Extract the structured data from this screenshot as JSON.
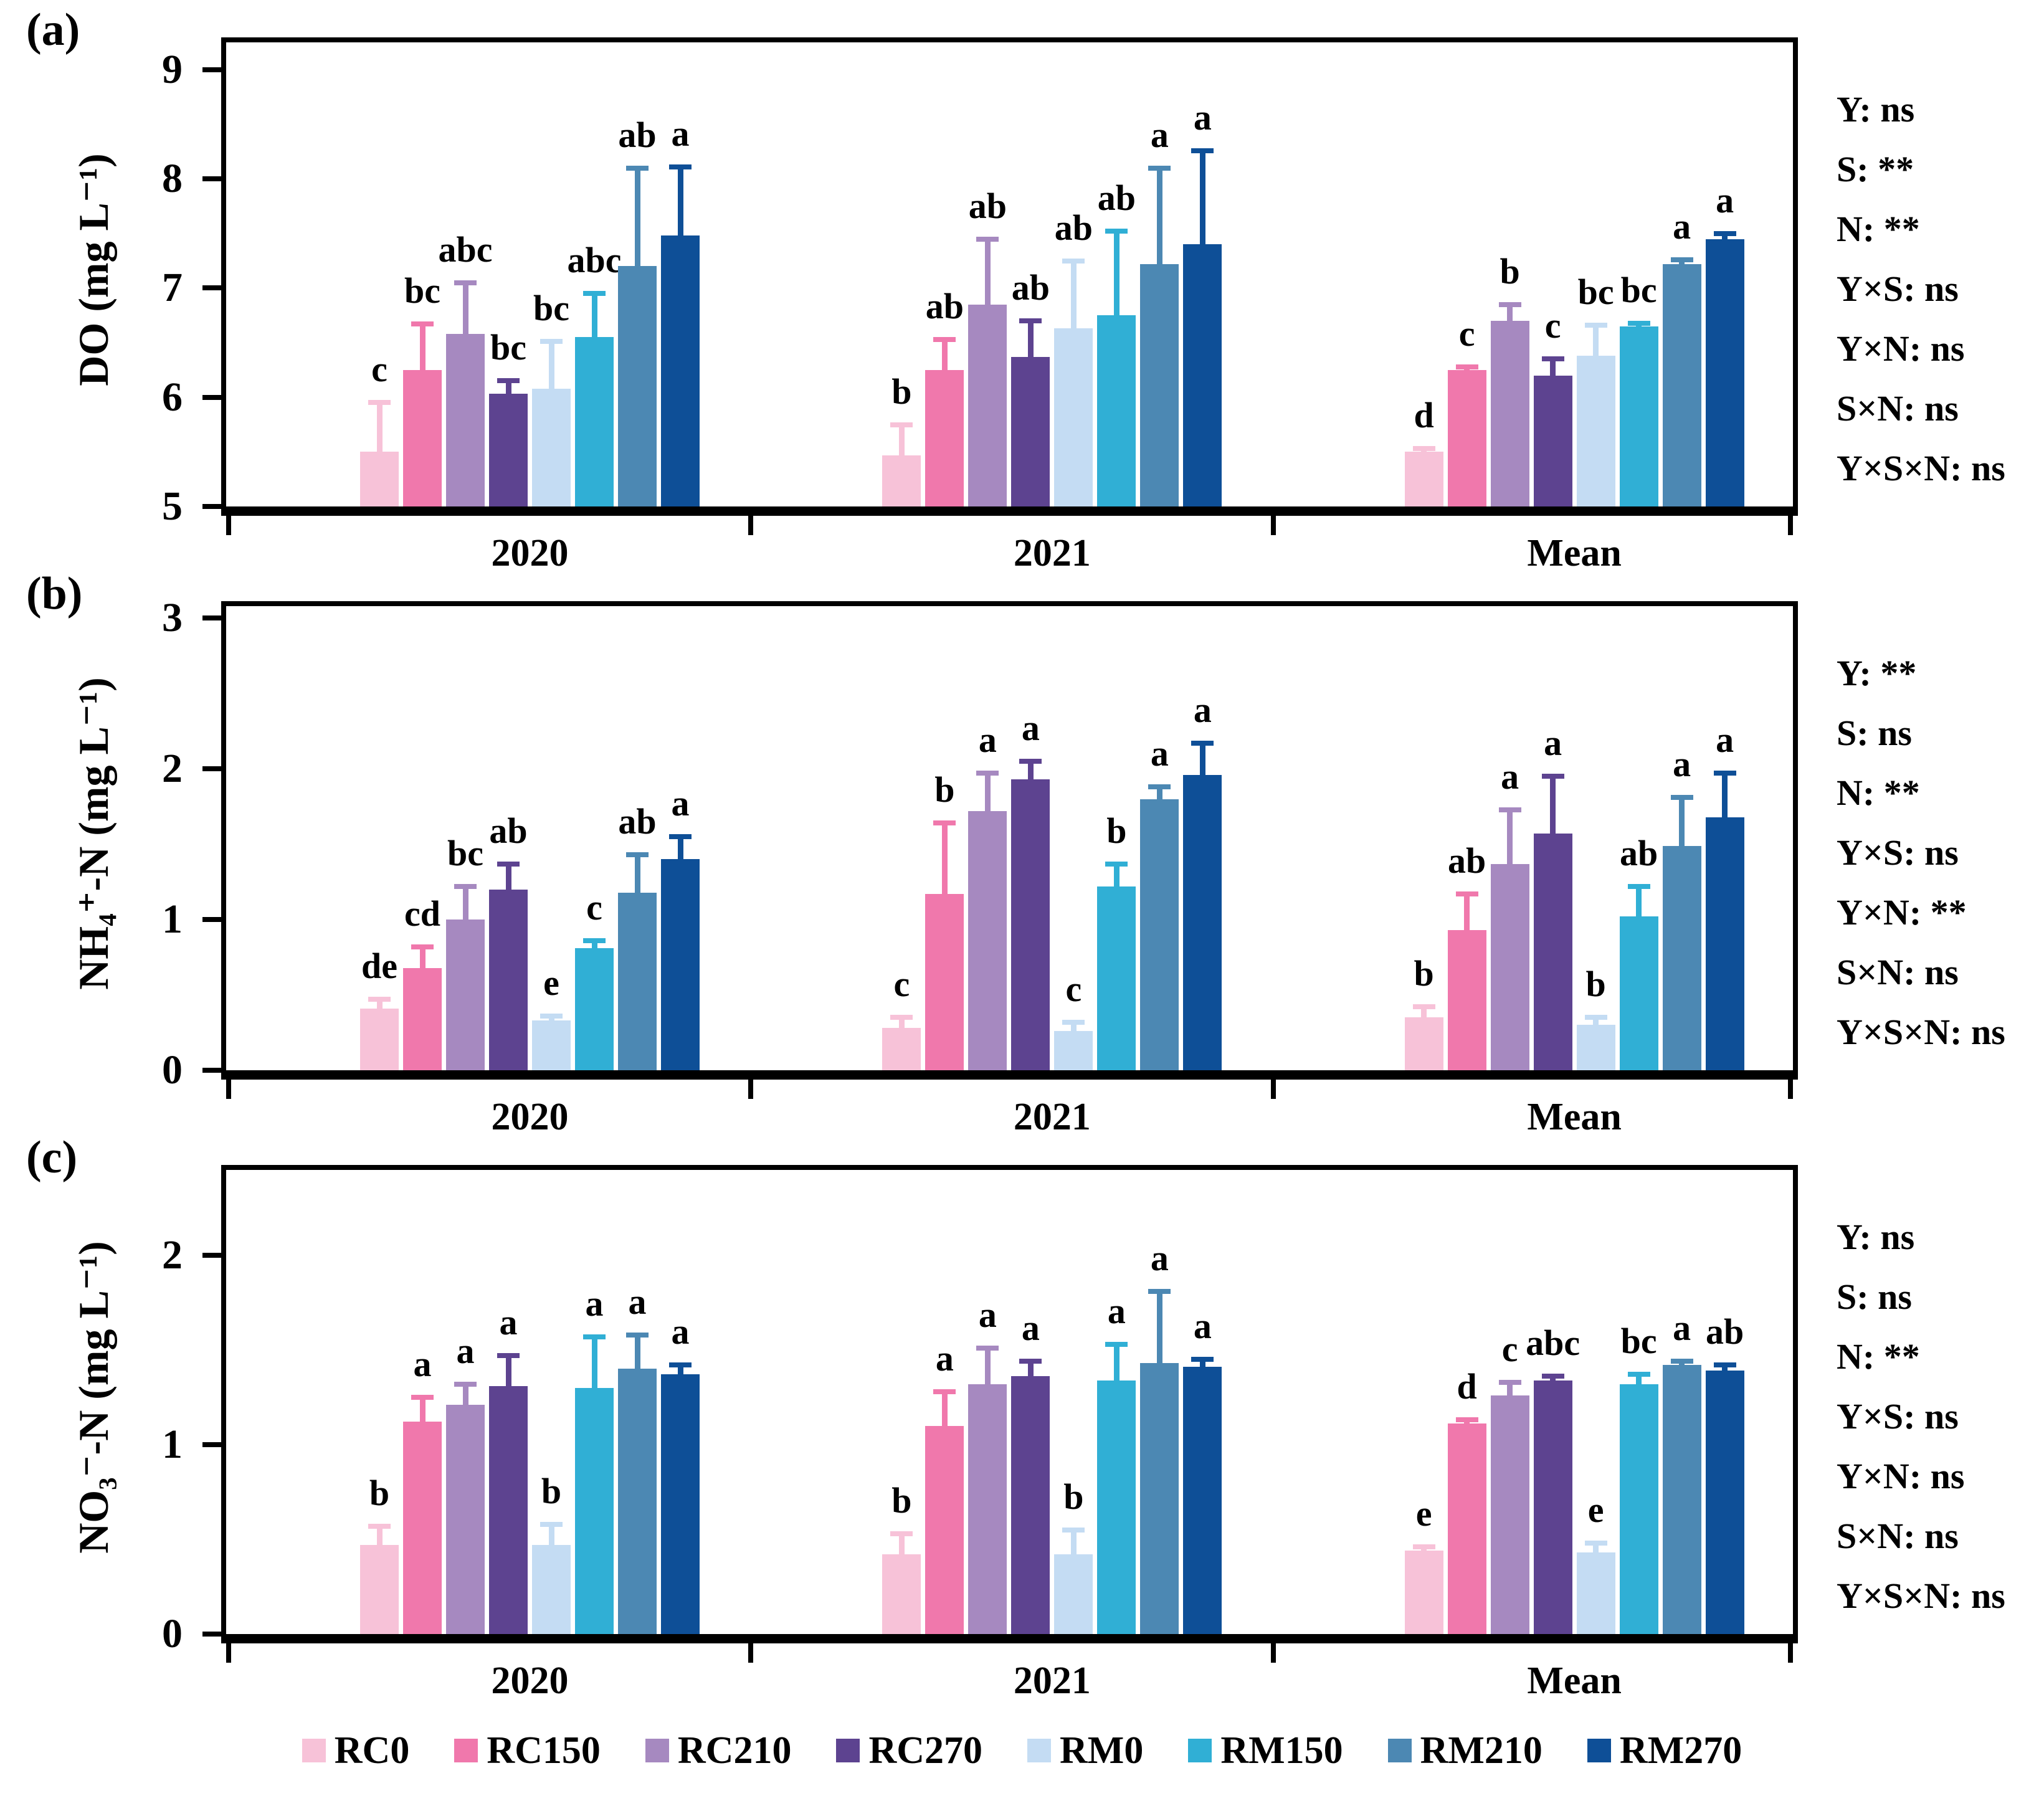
{
  "legend": {
    "items": [
      {
        "label": "RC0",
        "color": "#F7C2D8"
      },
      {
        "label": "RC150",
        "color": "#F078AC"
      },
      {
        "label": "RC210",
        "color": "#A689C0"
      },
      {
        "label": "RC270",
        "color": "#5D4390"
      },
      {
        "label": "RM0",
        "color": "#C4DCF3"
      },
      {
        "label": "RM150",
        "color": "#30AFD5"
      },
      {
        "label": "RM210",
        "color": "#4C88B3"
      },
      {
        "label": "RM270",
        "color": "#0E4F97"
      }
    ]
  },
  "chart_data": [
    {
      "type": "bar",
      "panel_label": "(a)",
      "ylabel": "DO (mg L⁻¹)",
      "ylim": [
        5,
        9.25
      ],
      "yticks": [
        5,
        6,
        7,
        8,
        9
      ],
      "grid": false,
      "legend_position": "bottom",
      "categories": [
        "2020",
        "2021",
        "Mean"
      ],
      "series_names": [
        "RC0",
        "RC150",
        "RC210",
        "RC270",
        "RM0",
        "RM150",
        "RM210",
        "RM270"
      ],
      "groups": [
        {
          "label": "2020",
          "values": [
            5.5,
            6.25,
            6.58,
            6.03,
            6.08,
            6.55,
            7.2,
            7.48
          ],
          "errors": [
            0.45,
            0.42,
            0.47,
            0.12,
            0.43,
            0.4,
            0.9,
            0.63
          ],
          "letters": [
            "c",
            "bc",
            "abc",
            "bc",
            "bc",
            "abc",
            "ab",
            "a"
          ]
        },
        {
          "label": "2021",
          "values": [
            5.47,
            6.25,
            6.85,
            6.37,
            6.63,
            6.75,
            7.22,
            7.4
          ],
          "errors": [
            0.28,
            0.28,
            0.6,
            0.33,
            0.62,
            0.77,
            0.88,
            0.86
          ],
          "letters": [
            "b",
            "ab",
            "ab",
            "ab",
            "ab",
            "ab",
            "a",
            "a"
          ]
        },
        {
          "label": "Mean",
          "values": [
            5.5,
            6.25,
            6.7,
            6.2,
            6.38,
            6.65,
            7.22,
            7.45
          ],
          "errors": [
            0.03,
            0.03,
            0.15,
            0.15,
            0.28,
            0.03,
            0.04,
            0.05
          ],
          "letters": [
            "d",
            "c",
            "b",
            "c",
            "bc",
            "bc",
            "a",
            "a"
          ]
        }
      ],
      "stats": [
        "Y: ns",
        "S: **",
        "N: **",
        "Y×S: ns",
        "Y×N: ns",
        "S×N: ns",
        "Y×S×N: ns"
      ]
    },
    {
      "type": "bar",
      "panel_label": "(b)",
      "ylabel": "NH₄⁺-N (mg L⁻¹)",
      "ylim": [
        0,
        3.08
      ],
      "yticks": [
        0,
        1,
        2,
        3
      ],
      "grid": false,
      "legend_position": "bottom",
      "categories": [
        "2020",
        "2021",
        "Mean"
      ],
      "series_names": [
        "RC0",
        "RC150",
        "RC210",
        "RC270",
        "RM0",
        "RM150",
        "RM210",
        "RM270"
      ],
      "groups": [
        {
          "label": "2020",
          "values": [
            0.41,
            0.68,
            1.0,
            1.2,
            0.33,
            0.81,
            1.18,
            1.4
          ],
          "errors": [
            0.06,
            0.14,
            0.22,
            0.17,
            0.03,
            0.05,
            0.25,
            0.15
          ],
          "letters": [
            "de",
            "cd",
            "bc",
            "ab",
            "e",
            "c",
            "ab",
            "a"
          ]
        },
        {
          "label": "2021",
          "values": [
            0.28,
            1.17,
            1.72,
            1.93,
            0.26,
            1.22,
            1.8,
            1.96
          ],
          "errors": [
            0.07,
            0.47,
            0.25,
            0.12,
            0.06,
            0.15,
            0.08,
            0.21
          ],
          "letters": [
            "c",
            "b",
            "a",
            "a",
            "c",
            "b",
            "a",
            "a"
          ]
        },
        {
          "label": "Mean",
          "values": [
            0.35,
            0.93,
            1.37,
            1.57,
            0.3,
            1.02,
            1.49,
            1.68
          ],
          "errors": [
            0.07,
            0.24,
            0.36,
            0.38,
            0.05,
            0.2,
            0.32,
            0.29
          ],
          "letters": [
            "b",
            "ab",
            "a",
            "a",
            "b",
            "ab",
            "a",
            "a"
          ]
        }
      ],
      "stats": [
        "Y: **",
        "S: ns",
        "N: **",
        "Y×S: ns",
        "Y×N: **",
        "S×N: ns",
        "Y×S×N: ns"
      ]
    },
    {
      "type": "bar",
      "panel_label": "(c)",
      "ylabel": "NO₃⁻-N (mg L⁻¹)",
      "ylim": [
        0,
        2.45
      ],
      "yticks": [
        0,
        1,
        2
      ],
      "grid": false,
      "legend_position": "bottom",
      "categories": [
        "2020",
        "2021",
        "Mean"
      ],
      "series_names": [
        "RC0",
        "RC150",
        "RC210",
        "RC270",
        "RM0",
        "RM150",
        "RM210",
        "RM270"
      ],
      "groups": [
        {
          "label": "2020",
          "values": [
            0.47,
            1.12,
            1.21,
            1.31,
            0.47,
            1.3,
            1.4,
            1.37
          ],
          "errors": [
            0.1,
            0.13,
            0.11,
            0.16,
            0.11,
            0.27,
            0.18,
            0.05
          ],
          "letters": [
            "b",
            "a",
            "a",
            "a",
            "b",
            "a",
            "a",
            "a"
          ]
        },
        {
          "label": "2021",
          "values": [
            0.42,
            1.1,
            1.32,
            1.36,
            0.42,
            1.34,
            1.43,
            1.41
          ],
          "errors": [
            0.11,
            0.18,
            0.19,
            0.08,
            0.13,
            0.19,
            0.38,
            0.04
          ],
          "letters": [
            "b",
            "a",
            "a",
            "a",
            "b",
            "a",
            "a",
            "a"
          ]
        },
        {
          "label": "Mean",
          "values": [
            0.44,
            1.11,
            1.26,
            1.34,
            0.43,
            1.32,
            1.42,
            1.39
          ],
          "errors": [
            0.02,
            0.02,
            0.07,
            0.02,
            0.05,
            0.05,
            0.02,
            0.03
          ],
          "letters": [
            "e",
            "d",
            "c",
            "abc",
            "e",
            "bc",
            "a",
            "ab"
          ]
        }
      ],
      "stats": [
        "Y: ns",
        "S: ns",
        "N: **",
        "Y×S: ns",
        "Y×N: ns",
        "S×N: ns",
        "Y×S×N: ns"
      ]
    }
  ]
}
